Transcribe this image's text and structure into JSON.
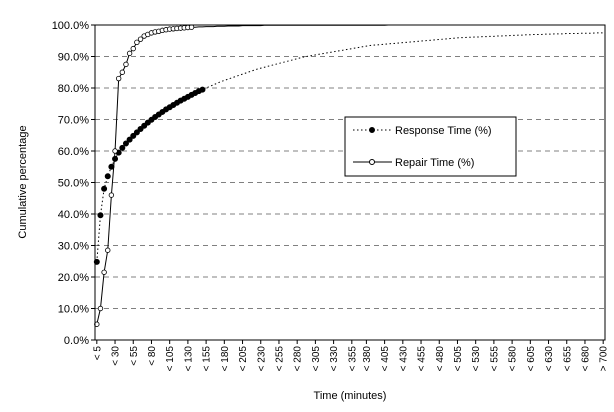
{
  "chart_data": {
    "type": "line",
    "title": "",
    "xlabel": "Time (minutes)",
    "ylabel": "Cumulative percentage",
    "ylim": [
      0,
      100
    ],
    "y_ticks": [
      "0.0%",
      "10.0%",
      "20.0%",
      "30.0%",
      "40.0%",
      "50.0%",
      "60.0%",
      "70.0%",
      "80.0%",
      "90.0%",
      "100.0%"
    ],
    "x_tick_labels": [
      "< 5",
      "< 30",
      "< 55",
      "< 80",
      "< 105",
      "< 130",
      "< 155",
      "< 180",
      "< 205",
      "< 230",
      "< 255",
      "< 280",
      "< 305",
      "< 330",
      "< 355",
      "< 380",
      "< 405",
      "< 430",
      "< 455",
      "< 480",
      "< 505",
      "< 530",
      "< 555",
      "< 580",
      "< 605",
      "< 630",
      "< 655",
      "< 680",
      "> 700"
    ],
    "x_bins": [
      5,
      10,
      15,
      20,
      25,
      30,
      35,
      40,
      45,
      50,
      55,
      60,
      65,
      70,
      75,
      80,
      85,
      90,
      95,
      100,
      105,
      110,
      115,
      120,
      125,
      130,
      135,
      140,
      145,
      150,
      155,
      160,
      165,
      170,
      175,
      180,
      185,
      190,
      195,
      200,
      205,
      210,
      215,
      220,
      225,
      230,
      235,
      240,
      245,
      250,
      255,
      260,
      265,
      270,
      275,
      280,
      285,
      290,
      295,
      300,
      305,
      310,
      315,
      320,
      325,
      330,
      335,
      340,
      345,
      350,
      355,
      360,
      365,
      370,
      375,
      380,
      385,
      390,
      395,
      400,
      405,
      410,
      415,
      420,
      425,
      430,
      435,
      440,
      445,
      450,
      455,
      460,
      465,
      470,
      475,
      480,
      485,
      490,
      495,
      500,
      505,
      510,
      515,
      520,
      525,
      530,
      535,
      540,
      545,
      550,
      555,
      560,
      565,
      570,
      575,
      580,
      585,
      590,
      595,
      600,
      605,
      610,
      615,
      620,
      625,
      630,
      635,
      640,
      645,
      650,
      655,
      660,
      665,
      670,
      675,
      680,
      685,
      690,
      695,
      700
    ],
    "series": [
      {
        "name": "Response Time (%)",
        "values": [
          24.8,
          39.6,
          48.0,
          52.0,
          55.0,
          57.5,
          59.5,
          61.0,
          62.4,
          63.6,
          64.8,
          65.9,
          67.0,
          68.0,
          69.0,
          69.9,
          70.8,
          71.6,
          72.4,
          73.2,
          73.9,
          74.6,
          75.3,
          76.0,
          76.6,
          77.2,
          77.8,
          78.4,
          79.0,
          79.5,
          80.0,
          80.5,
          81.0,
          81.5,
          82.0,
          82.4,
          82.8,
          83.2,
          83.6,
          84.0,
          84.4,
          84.8,
          85.2,
          85.6,
          86.0,
          86.3,
          86.6,
          86.9,
          87.2,
          87.5,
          87.8,
          88.1,
          88.4,
          88.7,
          89.0,
          89.3,
          89.6,
          89.9,
          90.1,
          90.3,
          90.5,
          90.7,
          90.9,
          91.1,
          91.3,
          91.5,
          91.7,
          91.9,
          92.1,
          92.3,
          92.5,
          92.7,
          92.9,
          93.1,
          93.3,
          93.5,
          93.6,
          93.7,
          93.8,
          93.9,
          94.0,
          94.1,
          94.2,
          94.3,
          94.4,
          94.5,
          94.6,
          94.7,
          94.8,
          94.9,
          95.0,
          95.1,
          95.2,
          95.3,
          95.4,
          95.5,
          95.6,
          95.7,
          95.8,
          95.9,
          96.0,
          96.0,
          96.1,
          96.1,
          96.2,
          96.2,
          96.3,
          96.3,
          96.4,
          96.4,
          96.5,
          96.5,
          96.6,
          96.6,
          96.7,
          96.7,
          96.8,
          96.8,
          96.9,
          96.9,
          97.0,
          97.0,
          97.0,
          97.1,
          97.1,
          97.1,
          97.2,
          97.2,
          97.2,
          97.3,
          97.3,
          97.3,
          97.3,
          97.4,
          97.4,
          97.4,
          97.4,
          97.5,
          97.5,
          97.5
        ]
      },
      {
        "name": "Repair Time (%)",
        "values": [
          5.0,
          10.0,
          21.5,
          28.5,
          46.0,
          60.0,
          83.0,
          85.0,
          87.5,
          91.0,
          92.5,
          94.5,
          95.5,
          96.5,
          97.0,
          97.5,
          97.8,
          98.0,
          98.3,
          98.5,
          98.7,
          98.8,
          98.9,
          99.0,
          99.1,
          99.2,
          99.3,
          99.3,
          99.4,
          99.4,
          99.5,
          99.5,
          99.5,
          99.6,
          99.6,
          99.6,
          99.7,
          99.7,
          99.7,
          99.7,
          99.8,
          99.8,
          99.8,
          99.8,
          99.8,
          99.8,
          99.9,
          99.9,
          99.9,
          99.9,
          99.9,
          99.9,
          99.9,
          99.9,
          99.9,
          99.9,
          99.9,
          99.9,
          99.9,
          99.9,
          99.9,
          99.9,
          99.9,
          99.9,
          99.9,
          99.9,
          99.9,
          99.9,
          99.9,
          99.9,
          99.9,
          99.9,
          99.9,
          99.9,
          99.9,
          99.9,
          99.9,
          99.9,
          99.9,
          99.9,
          100.0,
          100.0,
          100.0,
          100.0,
          100.0,
          100.0,
          100.0,
          100.0,
          100.0,
          100.0,
          100.0,
          100.0,
          100.0,
          100.0,
          100.0,
          100.0,
          100.0,
          100.0,
          100.0,
          100.0,
          100.0,
          100.0,
          100.0,
          100.0,
          100.0,
          100.0,
          100.0,
          100.0,
          100.0,
          100.0,
          100.0,
          100.0,
          100.0,
          100.0,
          100.0,
          100.0,
          100.0,
          100.0,
          100.0,
          100.0,
          100.0,
          100.0,
          100.0,
          100.0,
          100.0,
          100.0,
          100.0,
          100.0,
          100.0,
          100.0,
          100.0,
          100.0,
          100.0,
          100.0,
          100.0,
          100.0,
          100.0,
          100.0,
          100.0,
          100.0
        ]
      }
    ],
    "legend": {
      "position": "center-right",
      "items": [
        {
          "label": "Response Time (%)",
          "style": "dotted-filled"
        },
        {
          "label": "Repair Time (%)",
          "style": "solid-hollow"
        }
      ]
    },
    "grid": {
      "horizontal": "dashed",
      "vertical": false
    }
  }
}
